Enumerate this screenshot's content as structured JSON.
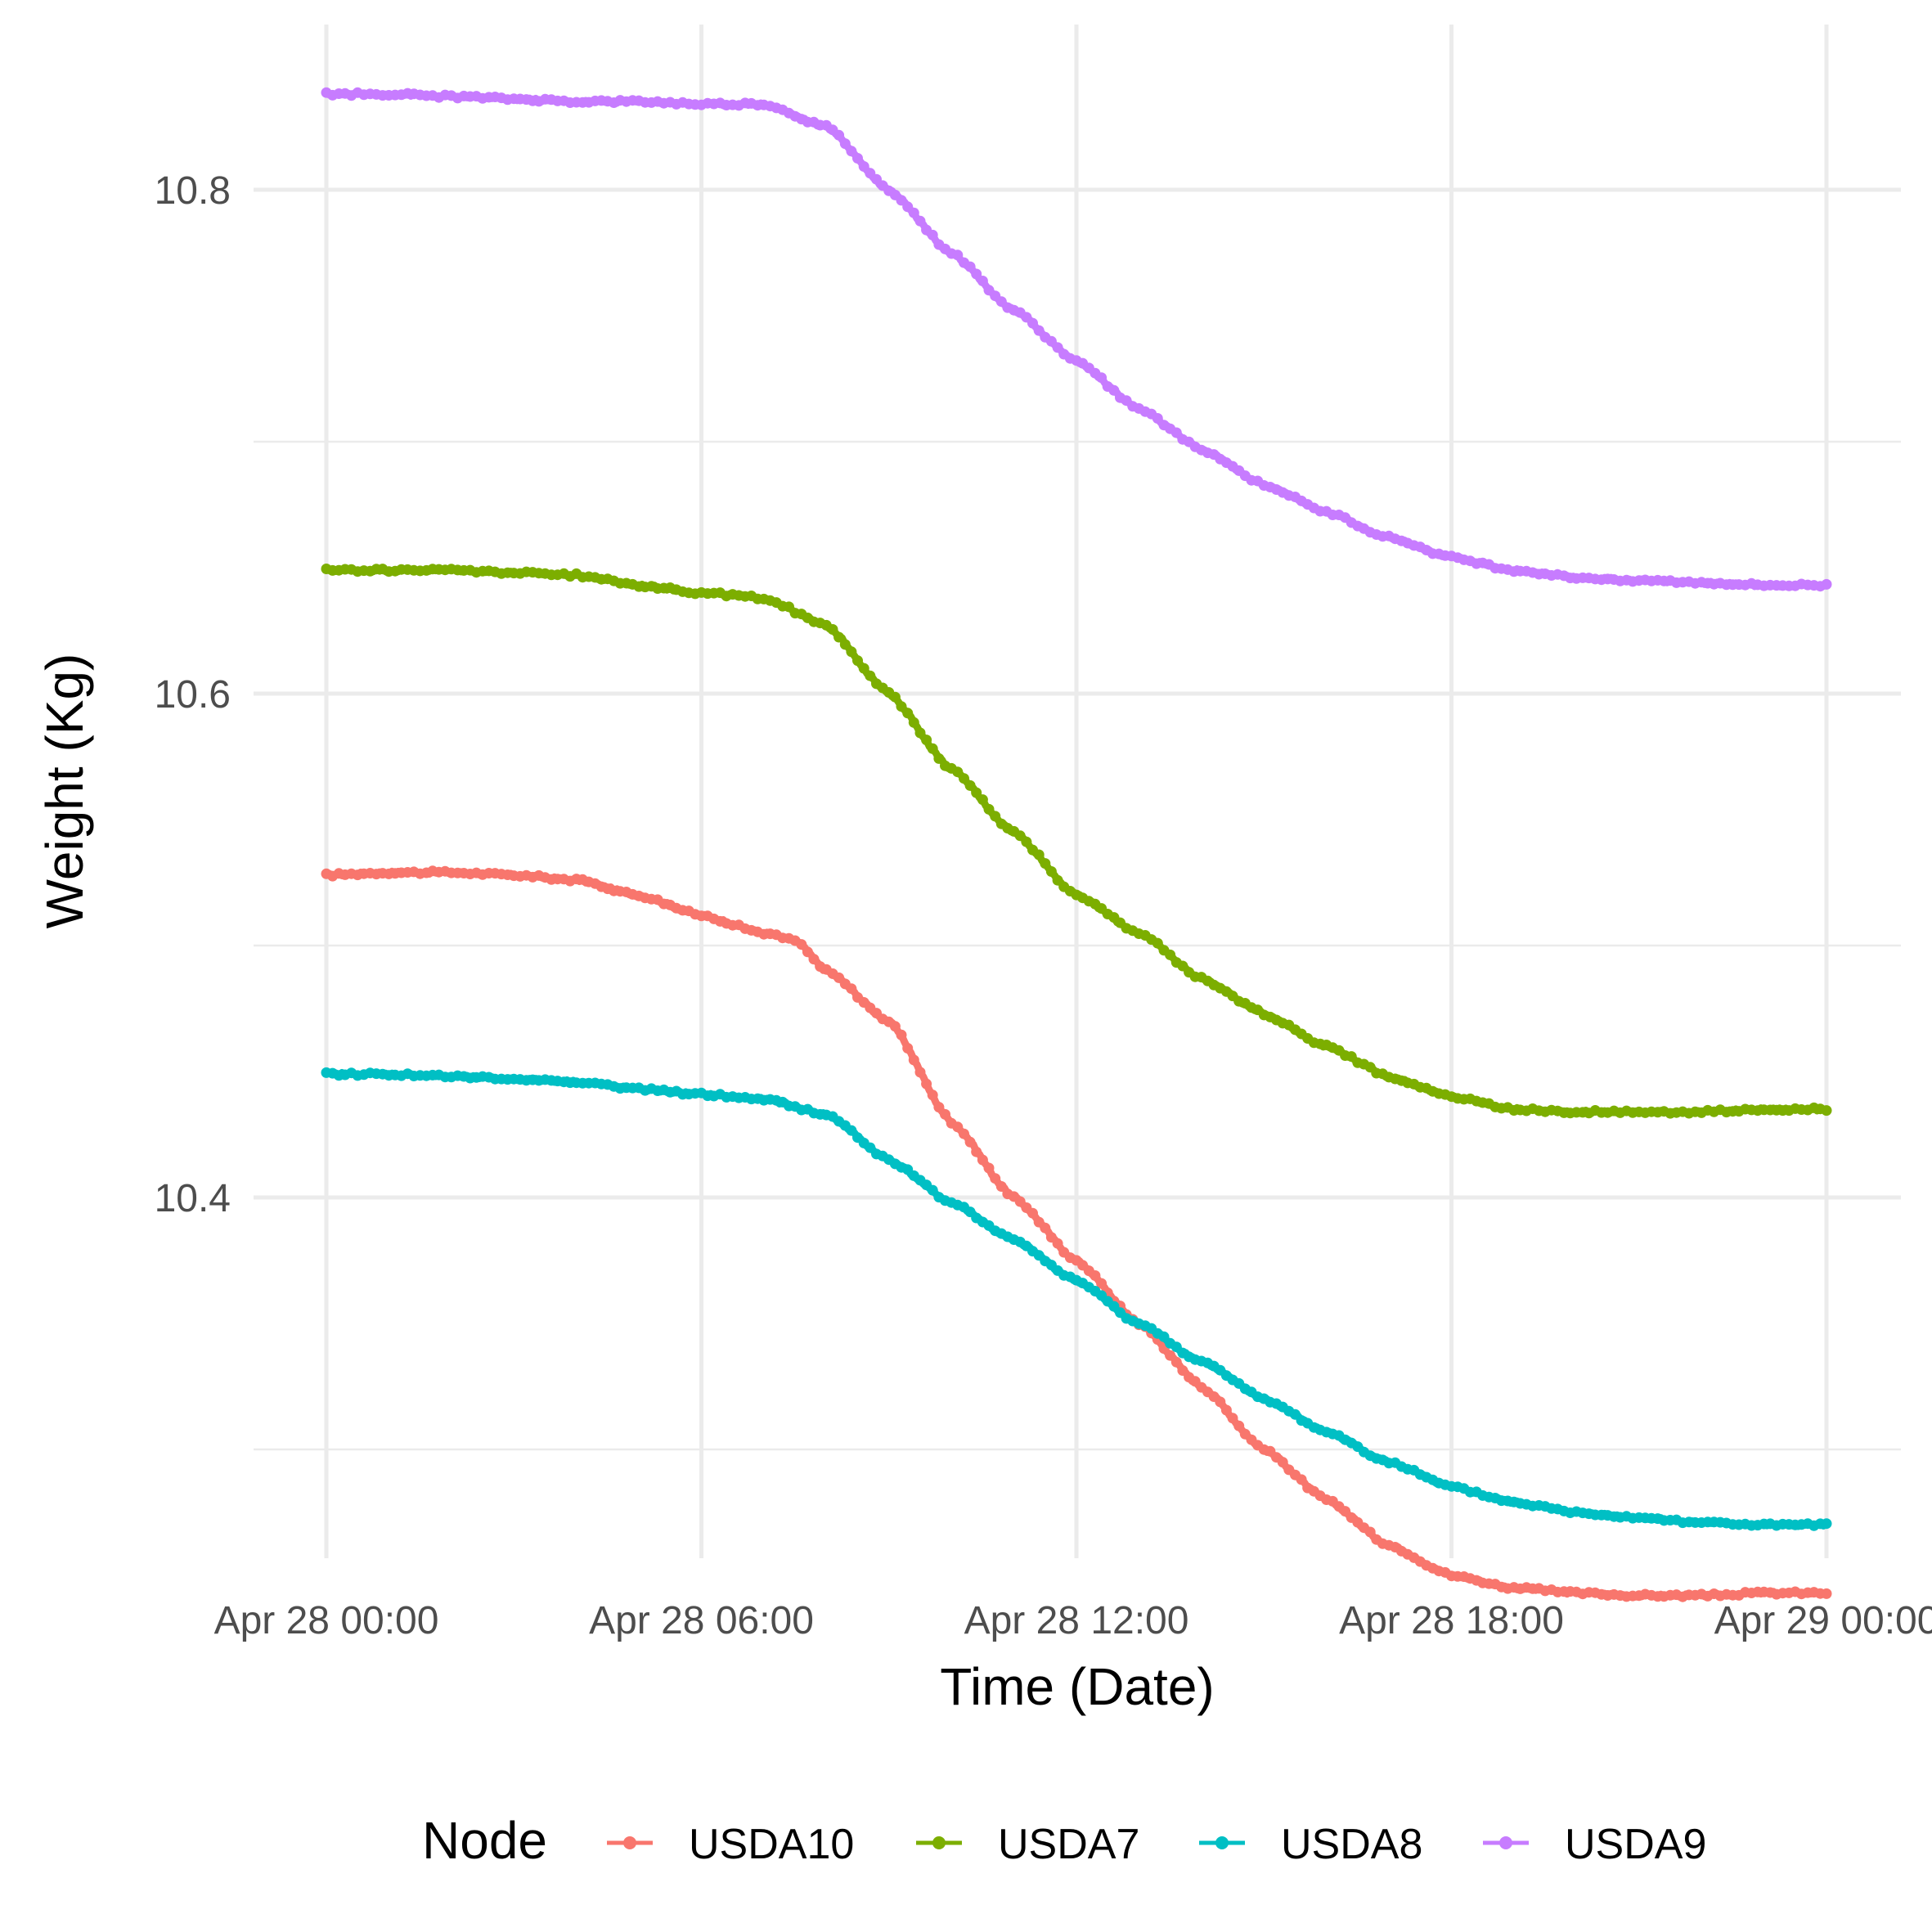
{
  "chart_data": {
    "type": "line",
    "title": "",
    "xlabel": "Time (Date)",
    "ylabel": "Weight (Kg)",
    "x_tick_labels": [
      "Apr 28 00:00",
      "Apr 28 06:00",
      "Apr 28 12:00",
      "Apr 28 18:00",
      "Apr 29 00:00"
    ],
    "x_tick_hours": [
      0,
      6,
      12,
      18,
      24
    ],
    "xlim_hours": [
      0,
      24
    ],
    "y_tick_labels": [
      "10.4",
      "10.6",
      "10.8"
    ],
    "y_ticks": [
      10.4,
      10.6,
      10.8
    ],
    "ylim": [
      10.25,
      10.86
    ],
    "grid": true,
    "legend": {
      "title": "Node",
      "position": "bottom"
    },
    "series": [
      {
        "name": "USDA10",
        "color": "#F8766D",
        "points": [
          [
            0,
            10.528
          ],
          [
            1,
            10.529
          ],
          [
            2,
            10.529
          ],
          [
            3,
            10.528
          ],
          [
            4,
            10.526
          ],
          [
            5,
            10.52
          ],
          [
            6,
            10.512
          ],
          [
            7,
            10.505
          ],
          [
            7.5,
            10.502
          ],
          [
            8,
            10.49
          ],
          [
            9,
            10.47
          ],
          [
            10,
            10.43
          ],
          [
            11,
            10.4
          ],
          [
            12,
            10.375
          ],
          [
            13,
            10.35
          ],
          [
            14,
            10.325
          ],
          [
            15,
            10.3
          ],
          [
            16,
            10.28
          ],
          [
            17,
            10.262
          ],
          [
            18,
            10.25
          ],
          [
            19,
            10.245
          ],
          [
            20,
            10.243
          ],
          [
            21,
            10.242
          ],
          [
            22,
            10.242
          ],
          [
            23,
            10.243
          ],
          [
            24,
            10.243
          ]
        ]
      },
      {
        "name": "USDA7",
        "color": "#7CAE00",
        "points": [
          [
            0,
            10.649
          ],
          [
            1,
            10.649
          ],
          [
            2,
            10.649
          ],
          [
            3,
            10.648
          ],
          [
            4,
            10.647
          ],
          [
            5,
            10.643
          ],
          [
            6,
            10.64
          ],
          [
            7,
            10.638
          ],
          [
            8,
            10.627
          ],
          [
            9,
            10.6
          ],
          [
            10,
            10.57
          ],
          [
            11,
            10.545
          ],
          [
            12,
            10.52
          ],
          [
            13,
            10.505
          ],
          [
            14,
            10.487
          ],
          [
            15,
            10.473
          ],
          [
            16,
            10.46
          ],
          [
            17,
            10.448
          ],
          [
            18,
            10.44
          ],
          [
            19,
            10.435
          ],
          [
            20,
            10.434
          ],
          [
            21,
            10.434
          ],
          [
            22,
            10.434
          ],
          [
            23,
            10.435
          ],
          [
            24,
            10.435
          ]
        ]
      },
      {
        "name": "USDA8",
        "color": "#00BFC4",
        "points": [
          [
            0,
            10.449
          ],
          [
            1,
            10.449
          ],
          [
            2,
            10.448
          ],
          [
            3,
            10.447
          ],
          [
            4,
            10.446
          ],
          [
            5,
            10.443
          ],
          [
            6,
            10.441
          ],
          [
            7,
            10.439
          ],
          [
            8,
            10.433
          ],
          [
            9,
            10.415
          ],
          [
            10,
            10.398
          ],
          [
            11,
            10.383
          ],
          [
            12,
            10.367
          ],
          [
            13,
            10.35
          ],
          [
            14,
            10.335
          ],
          [
            15,
            10.32
          ],
          [
            16,
            10.307
          ],
          [
            17,
            10.295
          ],
          [
            18,
            10.285
          ],
          [
            19,
            10.279
          ],
          [
            20,
            10.275
          ],
          [
            21,
            10.273
          ],
          [
            22,
            10.271
          ],
          [
            23,
            10.27
          ],
          [
            24,
            10.27
          ]
        ]
      },
      {
        "name": "USDA9",
        "color": "#C77CFF",
        "points": [
          [
            0,
            10.838
          ],
          [
            1,
            10.838
          ],
          [
            2,
            10.837
          ],
          [
            3,
            10.836
          ],
          [
            4,
            10.835
          ],
          [
            5,
            10.835
          ],
          [
            6,
            10.834
          ],
          [
            7,
            10.834
          ],
          [
            8,
            10.825
          ],
          [
            9,
            10.8
          ],
          [
            10,
            10.775
          ],
          [
            11,
            10.752
          ],
          [
            12,
            10.732
          ],
          [
            13,
            10.713
          ],
          [
            14,
            10.697
          ],
          [
            15,
            10.683
          ],
          [
            16,
            10.672
          ],
          [
            17,
            10.662
          ],
          [
            18,
            10.654
          ],
          [
            19,
            10.649
          ],
          [
            20,
            10.646
          ],
          [
            21,
            10.645
          ],
          [
            22,
            10.644
          ],
          [
            23,
            10.643
          ],
          [
            24,
            10.643
          ]
        ]
      }
    ]
  }
}
